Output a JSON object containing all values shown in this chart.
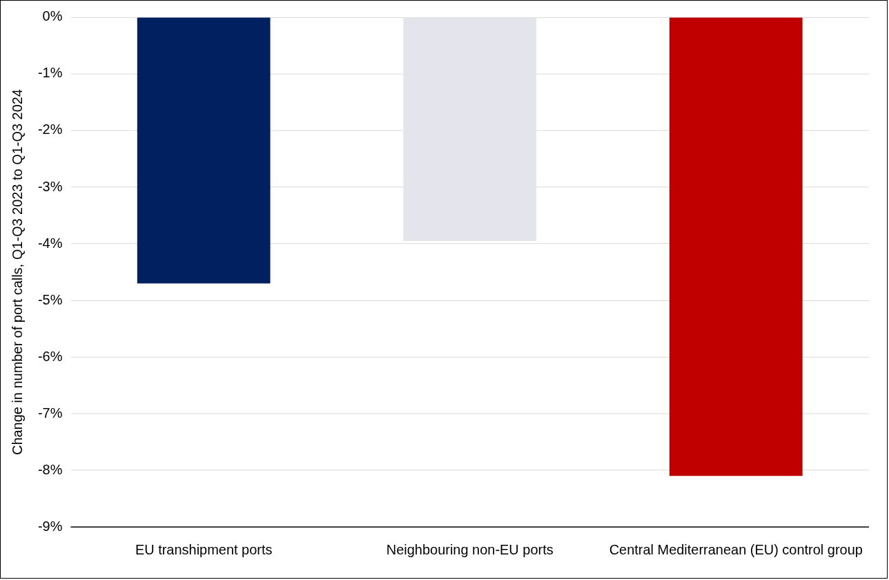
{
  "chart_data": {
    "type": "bar",
    "ylabel": "Change in number of port calls, Q1-Q3 2023 to Q1-Q3 2024",
    "categories": [
      "EU transhipment ports",
      "Neighbouring non-EU ports",
      "Central Mediterranean (EU) control group"
    ],
    "values": [
      -4.7,
      -3.95,
      -8.1
    ],
    "colors": [
      "#002060",
      "#e4e5ec",
      "#c00000"
    ],
    "ylim": [
      -9,
      0
    ],
    "yticks": [
      {
        "value": 0,
        "label": "0%"
      },
      {
        "value": -1,
        "label": "-1%"
      },
      {
        "value": -2,
        "label": "-2%"
      },
      {
        "value": -3,
        "label": "-3%"
      },
      {
        "value": -4,
        "label": "-4%"
      },
      {
        "value": -5,
        "label": "-5%"
      },
      {
        "value": -6,
        "label": "-6%"
      },
      {
        "value": -7,
        "label": "-7%"
      },
      {
        "value": -8,
        "label": "-8%"
      },
      {
        "value": -9,
        "label": "-9%"
      }
    ],
    "grid": "y"
  }
}
